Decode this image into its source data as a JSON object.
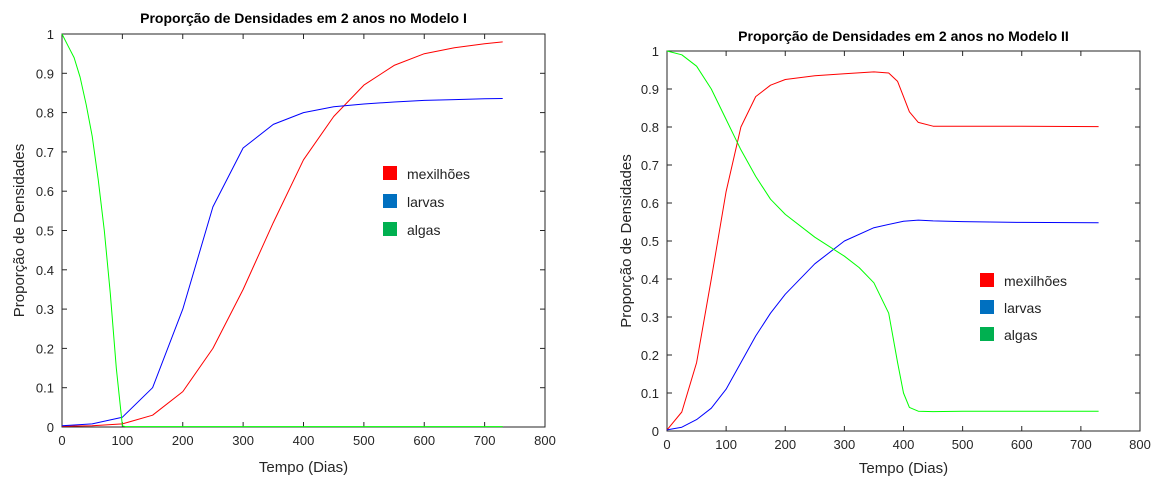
{
  "colors": {
    "mexilhoes": "#ff0000",
    "larvas": "#0000ff",
    "algas": "#00ff00",
    "legend_mexilhoes": "#ff0000",
    "legend_larvas": "#0070c0",
    "legend_algas": "#00b050",
    "axis": "#262626"
  },
  "chart_data": [
    {
      "type": "line",
      "title": "Proporção de Densidades em 2 anos no Modelo I",
      "xlabel": "Tempo (Dias)",
      "ylabel": "Proporção de Densidades",
      "xlim": [
        0,
        800
      ],
      "ylim": [
        0,
        1
      ],
      "xticks": [
        "0",
        "100",
        "200",
        "300",
        "400",
        "500",
        "600",
        "700",
        "800"
      ],
      "yticks": [
        "0",
        "0.1",
        "0.2",
        "0.3",
        "0.4",
        "0.5",
        "0.6",
        "0.7",
        "0.8",
        "0.9",
        "1"
      ],
      "grid": false,
      "legend_position": "center-right",
      "legend": [
        "mexilhões",
        "larvas",
        "algas"
      ],
      "series": [
        {
          "name": "mexilhões",
          "color_key": "mexilhoes",
          "x": [
            0,
            50,
            100,
            150,
            200,
            250,
            300,
            350,
            400,
            450,
            500,
            550,
            600,
            650,
            700,
            730
          ],
          "y": [
            0.002,
            0.003,
            0.008,
            0.03,
            0.09,
            0.2,
            0.35,
            0.52,
            0.68,
            0.79,
            0.87,
            0.92,
            0.95,
            0.965,
            0.975,
            0.98
          ]
        },
        {
          "name": "larvas",
          "color_key": "larvas",
          "x": [
            0,
            50,
            100,
            150,
            200,
            250,
            300,
            350,
            400,
            450,
            500,
            550,
            600,
            650,
            700,
            730
          ],
          "y": [
            0.003,
            0.008,
            0.025,
            0.1,
            0.3,
            0.56,
            0.71,
            0.77,
            0.8,
            0.815,
            0.822,
            0.827,
            0.831,
            0.833,
            0.835,
            0.836
          ]
        },
        {
          "name": "algas",
          "color_key": "algas",
          "x": [
            0,
            10,
            20,
            30,
            40,
            50,
            60,
            70,
            80,
            90,
            100,
            105,
            150,
            300,
            500,
            730
          ],
          "y": [
            1,
            0.97,
            0.94,
            0.89,
            0.82,
            0.74,
            0.63,
            0.5,
            0.34,
            0.15,
            0.003,
            0.001,
            0.001,
            0.001,
            0.001,
            0.001
          ]
        }
      ]
    },
    {
      "type": "line",
      "title": "Proporção de Densidades em 2 anos no Modelo II",
      "xlabel": "Tempo (Dias)",
      "ylabel": "Proporção de Densidades",
      "xlim": [
        0,
        800
      ],
      "ylim": [
        0,
        1
      ],
      "xticks": [
        "0",
        "100",
        "200",
        "300",
        "400",
        "500",
        "600",
        "700",
        "800"
      ],
      "yticks": [
        "0",
        "0.1",
        "0.2",
        "0.3",
        "0.4",
        "0.5",
        "0.6",
        "0.7",
        "0.8",
        "0.9",
        "1"
      ],
      "grid": false,
      "legend_position": "center-right",
      "legend": [
        "mexilhões",
        "larvas",
        "algas"
      ],
      "series": [
        {
          "name": "mexilhões",
          "color_key": "mexilhoes",
          "x": [
            0,
            25,
            50,
            75,
            100,
            125,
            150,
            175,
            200,
            250,
            300,
            350,
            375,
            390,
            400,
            410,
            425,
            450,
            500,
            600,
            730
          ],
          "y": [
            0.003,
            0.05,
            0.18,
            0.4,
            0.63,
            0.8,
            0.88,
            0.91,
            0.925,
            0.935,
            0.94,
            0.945,
            0.942,
            0.92,
            0.88,
            0.84,
            0.812,
            0.802,
            0.802,
            0.802,
            0.801
          ]
        },
        {
          "name": "larvas",
          "color_key": "larvas",
          "x": [
            0,
            25,
            50,
            75,
            100,
            125,
            150,
            175,
            200,
            250,
            300,
            350,
            400,
            425,
            450,
            500,
            600,
            730
          ],
          "y": [
            0.003,
            0.01,
            0.03,
            0.06,
            0.11,
            0.18,
            0.25,
            0.31,
            0.36,
            0.44,
            0.5,
            0.535,
            0.552,
            0.555,
            0.553,
            0.551,
            0.549,
            0.548
          ]
        },
        {
          "name": "algas",
          "color_key": "algas",
          "x": [
            0,
            25,
            50,
            75,
            100,
            125,
            150,
            175,
            200,
            250,
            300,
            325,
            350,
            375,
            390,
            400,
            410,
            425,
            450,
            500,
            600,
            730
          ],
          "y": [
            1,
            0.99,
            0.96,
            0.9,
            0.82,
            0.74,
            0.67,
            0.61,
            0.57,
            0.51,
            0.46,
            0.43,
            0.39,
            0.31,
            0.18,
            0.1,
            0.062,
            0.052,
            0.051,
            0.052,
            0.052,
            0.052
          ]
        }
      ]
    }
  ]
}
